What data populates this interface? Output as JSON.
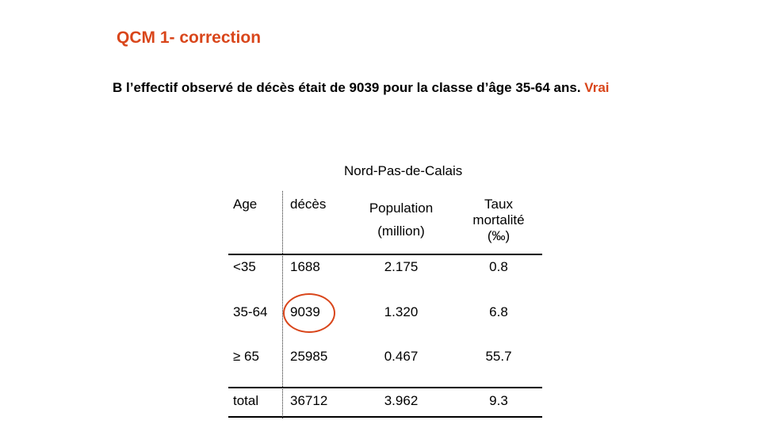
{
  "slide": {
    "title": "QCM 1- correction",
    "statement": "B l’effectif observé de décès était de 9039 pour la classe d’âge 35-64 ans.",
    "verdict": "Vrai",
    "highlight_color": "#d9461b"
  },
  "table": {
    "region": "Nord-Pas-de-Calais",
    "headers": {
      "age": "Age",
      "deaths": "décès",
      "population_line1": "Population",
      "population_line2": "(million)",
      "rate_line1": "Taux",
      "rate_line2": "mortalité",
      "rate_line3": "(‰)"
    },
    "rows": [
      {
        "age": "<35",
        "deaths": "1688",
        "population": "2.175",
        "rate": "0.8"
      },
      {
        "age": "35-64",
        "deaths": "9039",
        "population": "1.320",
        "rate": "6.8"
      },
      {
        "age": "≥ 65",
        "deaths": "25985",
        "population": "0.467",
        "rate": "55.7"
      }
    ],
    "total": {
      "age": "total",
      "deaths": "36712",
      "population": "3.962",
      "rate": "9.3"
    }
  }
}
